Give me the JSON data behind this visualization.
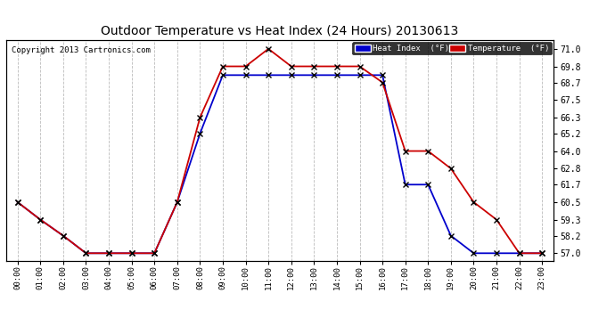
{
  "title": "Outdoor Temperature vs Heat Index (24 Hours) 20130613",
  "copyright": "Copyright 2013 Cartronics.com",
  "background_color": "#ffffff",
  "grid_color": "#bbbbbb",
  "hours": [
    "00:00",
    "01:00",
    "02:00",
    "03:00",
    "04:00",
    "05:00",
    "06:00",
    "07:00",
    "08:00",
    "09:00",
    "10:00",
    "11:00",
    "12:00",
    "13:00",
    "14:00",
    "15:00",
    "16:00",
    "17:00",
    "18:00",
    "19:00",
    "20:00",
    "21:00",
    "22:00",
    "23:00"
  ],
  "temperature": [
    60.5,
    59.3,
    58.2,
    57.0,
    57.0,
    57.0,
    57.0,
    60.5,
    66.3,
    69.8,
    69.8,
    71.0,
    69.8,
    69.8,
    69.8,
    69.8,
    68.7,
    64.0,
    64.0,
    62.8,
    60.5,
    59.3,
    57.0,
    57.0
  ],
  "heat_index": [
    60.5,
    59.3,
    58.2,
    57.0,
    57.0,
    57.0,
    57.0,
    60.5,
    65.2,
    69.2,
    69.2,
    69.2,
    69.2,
    69.2,
    69.2,
    69.2,
    69.2,
    61.7,
    61.7,
    58.2,
    57.0,
    57.0,
    57.0,
    57.0
  ],
  "temp_color": "#cc0000",
  "heat_color": "#0000cc",
  "ylim_min": 56.5,
  "ylim_max": 71.6,
  "yticks": [
    57.0,
    58.2,
    59.3,
    60.5,
    61.7,
    62.8,
    64.0,
    65.2,
    66.3,
    67.5,
    68.7,
    69.8,
    71.0
  ],
  "legend_heat_label": "Heat Index  (°F)",
  "legend_temp_label": "Temperature  (°F)"
}
